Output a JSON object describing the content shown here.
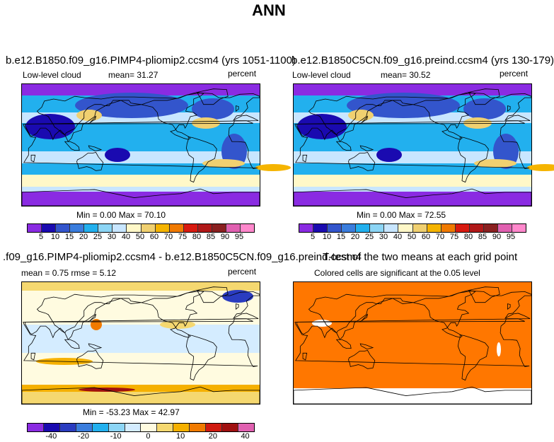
{
  "title": "ANN",
  "chart_data": [
    {
      "type": "heatmap",
      "title": "b.e12.B1850.f09_g16.PIMP4-pliomip2.ccsm4 (yrs 1051-1100)",
      "left_label": "Low-level cloud",
      "stat": "mean=   31.27",
      "units": "percent",
      "range_text": "Min =    0.00 Max =   70.10",
      "min": 0.0,
      "max": 70.1,
      "mean": 31.27,
      "colorbar_ticks": [
        "5",
        "10",
        "15",
        "20",
        "25",
        "30",
        "40",
        "50",
        "60",
        "70",
        "75",
        "80",
        "85",
        "90",
        "95"
      ]
    },
    {
      "type": "heatmap",
      "title": "b.e12.B1850C5CN.f09_g16.preind.ccsm4 (yrs 130-179)",
      "left_label": "Low-level cloud",
      "stat": "mean=   30.52",
      "units": "percent",
      "range_text": "Min =    0.00 Max =   72.55",
      "min": 0.0,
      "max": 72.55,
      "mean": 30.52,
      "colorbar_ticks": [
        "5",
        "10",
        "15",
        "20",
        "25",
        "30",
        "40",
        "50",
        "60",
        "70",
        "75",
        "80",
        "85",
        "90",
        "95"
      ]
    },
    {
      "type": "heatmap",
      "title": ".f09_g16.PIMP4-pliomip2.ccsm4 - b.e12.B1850C5CN.f09_g16.preind.ccsm4",
      "left_label": "mean =    0.75     rmse =    5.12",
      "units": "percent",
      "range_text": "Min = -53.23 Max =   42.97",
      "min": -53.23,
      "max": 42.97,
      "mean": 0.75,
      "rmse": 5.12,
      "colorbar_ticks": [
        "-40",
        "-20",
        "-10",
        "0",
        "10",
        "20",
        "40"
      ]
    },
    {
      "type": "heatmap",
      "title": "T-test of the two means at each grid point",
      "subtitle": "Colored cells are significant at the 0.05 level"
    }
  ],
  "colors": {
    "abs_scale": [
      "#8a2be2",
      "#1a0ab0",
      "#3355cc",
      "#3a7ddd",
      "#22b0ee",
      "#8cd5f5",
      "#c8e6ff",
      "#fff8c8",
      "#f0d070",
      "#f5b400",
      "#f07a00",
      "#d81a10",
      "#b01818",
      "#8a2020",
      "#e060b0",
      "#ff88cc"
    ],
    "diff_scale": [
      "#8a2be2",
      "#1a0ab0",
      "#2a3cc0",
      "#3a7ddd",
      "#22b0ee",
      "#8cd5f5",
      "#d4ecff",
      "#fffbe0",
      "#f5d870",
      "#f5b000",
      "#f07a00",
      "#d01a10",
      "#a01010",
      "#e060b0"
    ],
    "ttest": "#ff7700"
  }
}
